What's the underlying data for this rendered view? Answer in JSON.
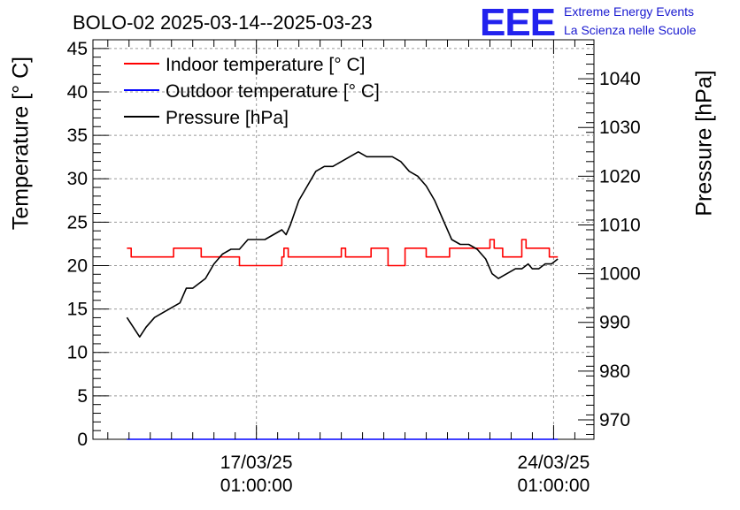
{
  "header": {
    "title": "BOLO-02 2025-03-14--2025-03-23",
    "logo_text": "EEE",
    "logo_line1": "Extreme Energy Events",
    "logo_line2": "La Scienza nelle Scuole",
    "logo_color": "#2222ee"
  },
  "chart_data": {
    "type": "line",
    "title": "BOLO-02 2025-03-14--2025-03-23",
    "ylabel": "Temperature [° C]",
    "y2label": "Pressure [hPa]",
    "ylim": [
      0,
      46
    ],
    "y2lim": [
      966,
      1048
    ],
    "y_ticks": [
      0,
      5,
      10,
      15,
      20,
      25,
      30,
      35,
      40,
      45
    ],
    "y2_ticks": [
      970,
      980,
      990,
      1000,
      1010,
      1020,
      1030,
      1040
    ],
    "x_ticks": [
      {
        "date": "17/03/25",
        "time": "01:00:00",
        "day": 3.0
      },
      {
        "date": "24/03/25",
        "time": "01:00:00",
        "day": 10.0
      }
    ],
    "xlim_days_from_2025_03_14_01h": [
      -0.85,
      10.95
    ],
    "grid": true,
    "legend_position": "top-left",
    "series": [
      {
        "name": "Indoor temperature [° C]",
        "axis": "left",
        "color": "#ff0000",
        "x": [
          -0.05,
          0.0,
          0.05,
          0.1,
          0.9,
          1.05,
          1.2,
          1.6,
          1.7,
          2.5,
          2.6,
          3.5,
          3.6,
          3.65,
          3.75,
          4.5,
          5.0,
          5.1,
          5.6,
          5.7,
          6.0,
          6.1,
          6.4,
          6.5,
          6.9,
          7.0,
          7.4,
          7.55,
          7.7,
          7.95,
          8.1,
          8.5,
          8.6,
          8.7,
          8.8,
          9.1,
          9.25,
          9.35,
          9.5,
          9.7,
          9.9,
          10.1
        ],
        "y": [
          22,
          22,
          21,
          21,
          21,
          22,
          22,
          22,
          21,
          21,
          20,
          20,
          21,
          22,
          21,
          21,
          22,
          21,
          21,
          22,
          22,
          20,
          20,
          22,
          22,
          21,
          21,
          22,
          22,
          22,
          22,
          23,
          22,
          22,
          21,
          21,
          23,
          22,
          22,
          22,
          21,
          21
        ]
      },
      {
        "name": "Outdoor temperature [° C]",
        "axis": "left",
        "color": "#0000ff",
        "x": [
          -0.05,
          10.1
        ],
        "y": [
          0,
          0
        ]
      },
      {
        "name": "Pressure [hPa]",
        "axis": "right",
        "color": "#000000",
        "x": [
          -0.05,
          0.1,
          0.25,
          0.4,
          0.6,
          0.8,
          1.0,
          1.2,
          1.35,
          1.5,
          1.65,
          1.8,
          2.0,
          2.2,
          2.4,
          2.6,
          2.8,
          3.0,
          3.2,
          3.4,
          3.6,
          3.7,
          3.8,
          4.0,
          4.2,
          4.4,
          4.6,
          4.8,
          5.0,
          5.2,
          5.4,
          5.6,
          5.8,
          6.0,
          6.2,
          6.4,
          6.6,
          6.8,
          7.0,
          7.2,
          7.4,
          7.6,
          7.8,
          8.0,
          8.2,
          8.4,
          8.55,
          8.7,
          8.9,
          9.1,
          9.25,
          9.4,
          9.5,
          9.65,
          9.8,
          9.95,
          10.1
        ],
        "y": [
          991,
          989,
          987,
          989,
          991,
          992,
          993,
          994,
          997,
          997,
          998,
          999,
          1002,
          1004,
          1005,
          1005,
          1007,
          1007,
          1007,
          1008,
          1009,
          1008,
          1010,
          1015,
          1018,
          1021,
          1022,
          1022,
          1023,
          1024,
          1025,
          1024,
          1024,
          1024,
          1024,
          1023,
          1021,
          1020,
          1018,
          1015,
          1011,
          1007,
          1006,
          1006,
          1005,
          1003,
          1000,
          999,
          1000,
          1001,
          1001,
          1002,
          1001,
          1001,
          1002,
          1002,
          1003
        ]
      }
    ]
  }
}
